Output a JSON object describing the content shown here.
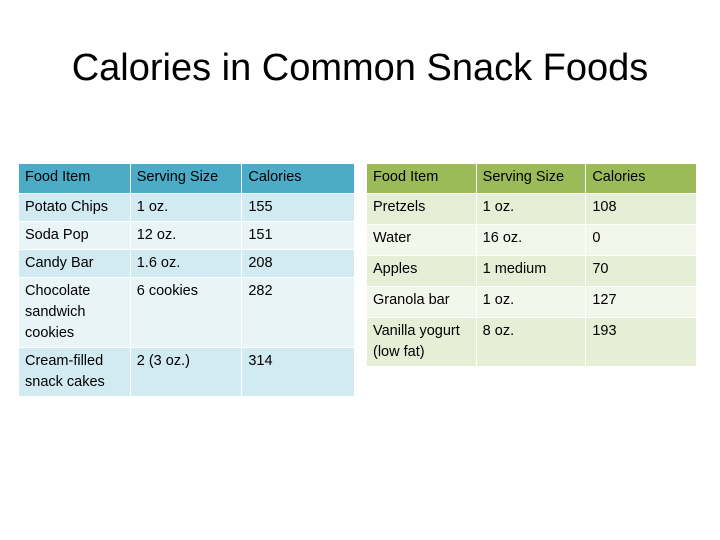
{
  "title": "Calories in Common Snack Foods",
  "colors": {
    "left_header": "#4aacc6",
    "left_row": "#d2eaf1",
    "right_header": "#9bbb59",
    "right_row": "#e6eed5"
  },
  "left_table": {
    "headers": [
      "Food Item",
      "Serving Size",
      "Calories"
    ],
    "rows": [
      [
        "Potato Chips",
        "1 oz.",
        "155"
      ],
      [
        "Soda Pop",
        "12 oz.",
        "151"
      ],
      [
        "Candy Bar",
        "1.6 oz.",
        "208"
      ],
      [
        "Chocolate sandwich cookies",
        "6 cookies",
        "282"
      ],
      [
        "Cream-filled snack cakes",
        "2 (3 oz.)",
        "314"
      ]
    ]
  },
  "right_table": {
    "headers": [
      "Food Item",
      "Serving Size",
      "Calories"
    ],
    "rows": [
      [
        "Pretzels",
        "1 oz.",
        "108"
      ],
      [
        "Water",
        "16 oz.",
        "0"
      ],
      [
        "Apples",
        "1 medium",
        "70"
      ],
      [
        "Granola bar",
        "1 oz.",
        "127"
      ],
      [
        "Vanilla yogurt (low fat)",
        "8 oz.",
        "193"
      ]
    ]
  }
}
